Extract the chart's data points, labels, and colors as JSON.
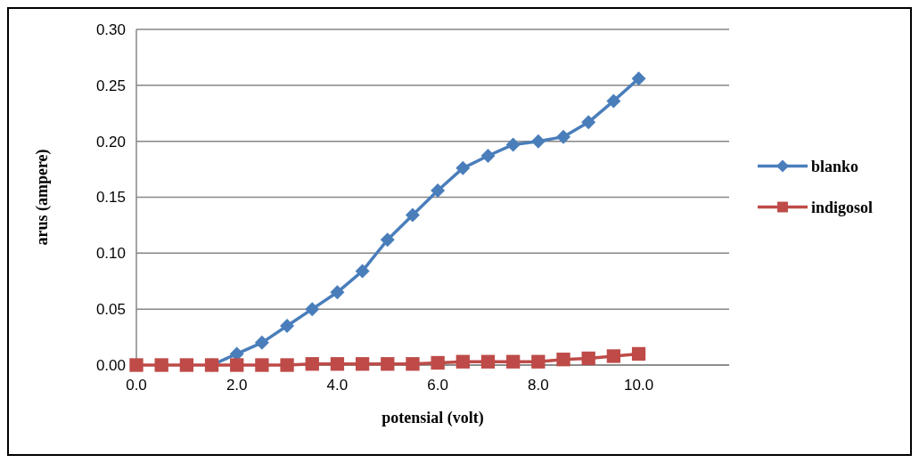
{
  "chart_data": {
    "type": "line",
    "xlabel": "potensial (volt)",
    "ylabel": "arus (ampere)",
    "x": [
      0,
      0.5,
      1,
      1.5,
      2,
      2.5,
      3,
      3.5,
      4,
      4.5,
      5,
      5.5,
      6,
      6.5,
      7,
      7.5,
      8,
      8.5,
      9,
      9.5,
      10
    ],
    "xlim": [
      0,
      11.8
    ],
    "xticks": [
      {
        "value": 0,
        "label": "0.0"
      },
      {
        "value": 2,
        "label": "2.0"
      },
      {
        "value": 4,
        "label": "4.0"
      },
      {
        "value": 6,
        "label": "6.0"
      },
      {
        "value": 8,
        "label": "8.0"
      },
      {
        "value": 10,
        "label": "10.0"
      }
    ],
    "ylim": [
      0,
      0.3
    ],
    "yticks": [
      {
        "value": 0,
        "label": "0.00"
      },
      {
        "value": 0.05,
        "label": "0.05"
      },
      {
        "value": 0.1,
        "label": "0.10"
      },
      {
        "value": 0.15,
        "label": "0.15"
      },
      {
        "value": 0.2,
        "label": "0.20"
      },
      {
        "value": 0.25,
        "label": "0.25"
      },
      {
        "value": 0.3,
        "label": "0.30"
      }
    ],
    "grid": "y",
    "legend": "right",
    "series": [
      {
        "name": "blanko",
        "color": "#4a7ebb",
        "marker": "diamond",
        "values": [
          null,
          null,
          null,
          0,
          0.01,
          0.02,
          0.035,
          0.05,
          0.065,
          0.084,
          0.112,
          0.134,
          0.156,
          0.176,
          0.187,
          0.197,
          0.2,
          0.204,
          0.217,
          0.236,
          0.256
        ]
      },
      {
        "name": "indigosol",
        "color": "#be4b48",
        "marker": "square",
        "values": [
          0,
          0,
          0,
          0,
          0,
          0,
          0,
          0.001,
          0.001,
          0.001,
          0.001,
          0.001,
          0.002,
          0.003,
          0.003,
          0.003,
          0.003,
          0.005,
          0.006,
          0.008,
          0.01
        ]
      }
    ]
  }
}
